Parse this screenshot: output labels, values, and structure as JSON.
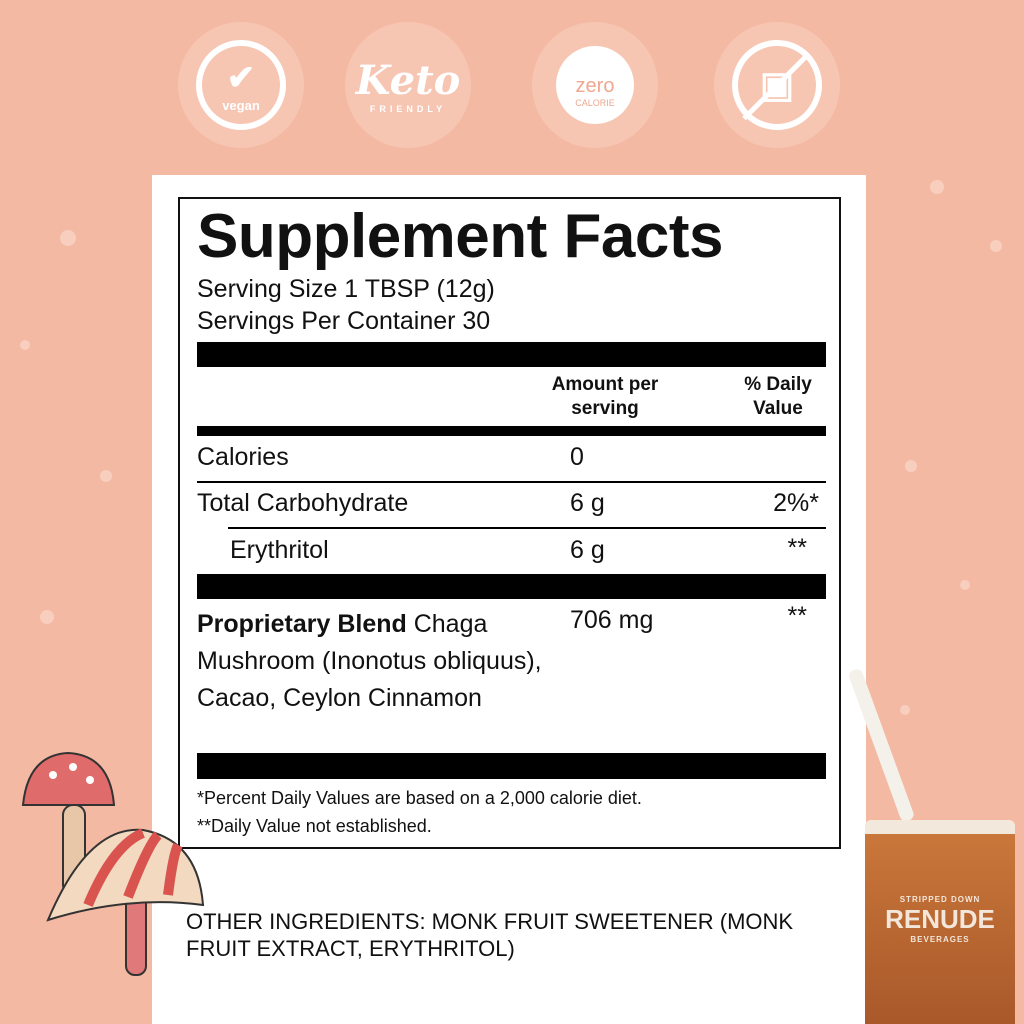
{
  "badges": [
    {
      "icon": "vegan-leaf-check-icon",
      "text": "vegan"
    },
    {
      "icon": "keto-leaf-icon",
      "text": "Keto",
      "subtext": "FRIENDLY"
    },
    {
      "icon": "scale-gauge-icon",
      "text": "zero",
      "subtext": "CALORIE"
    },
    {
      "icon": "no-sugar-cubes-icon"
    }
  ],
  "facts": {
    "title": "Supplement Facts",
    "serving_size": "Serving Size 1 TBSP (12g)",
    "servings_per_container": "Servings Per Container 30",
    "col_amount": "Amount per serving",
    "col_dv": "% Daily Value",
    "rows": [
      {
        "name": "Calories",
        "amount": "0",
        "dv": ""
      },
      {
        "name": "Total Carbohydrate",
        "amount": "6 g",
        "dv": "2%*"
      },
      {
        "name": "Erythritol",
        "amount": "6 g",
        "dv": "**"
      }
    ],
    "blend": {
      "name": "Proprietary Blend",
      "desc": " Chaga Mushroom (Inonotus obliquus), Cacao, Ceylon Cinnamon",
      "amount": "706 mg",
      "dv": "**"
    },
    "footnote1": "*Percent Daily Values are based on a 2,000 calorie diet.",
    "footnote2": "**Daily Value not established."
  },
  "other_ingredients": "OTHER INGREDIENTS: MONK FRUIT SWEETENER (MONK FRUIT EXTRACT, ERYTHRITOL)",
  "glass": {
    "top": "STRIPPED DOWN",
    "brand": "RENUDE",
    "bottom": "BEVERAGES"
  },
  "colors": {
    "background": "#f4b9a3",
    "drink": "#b8642c"
  }
}
